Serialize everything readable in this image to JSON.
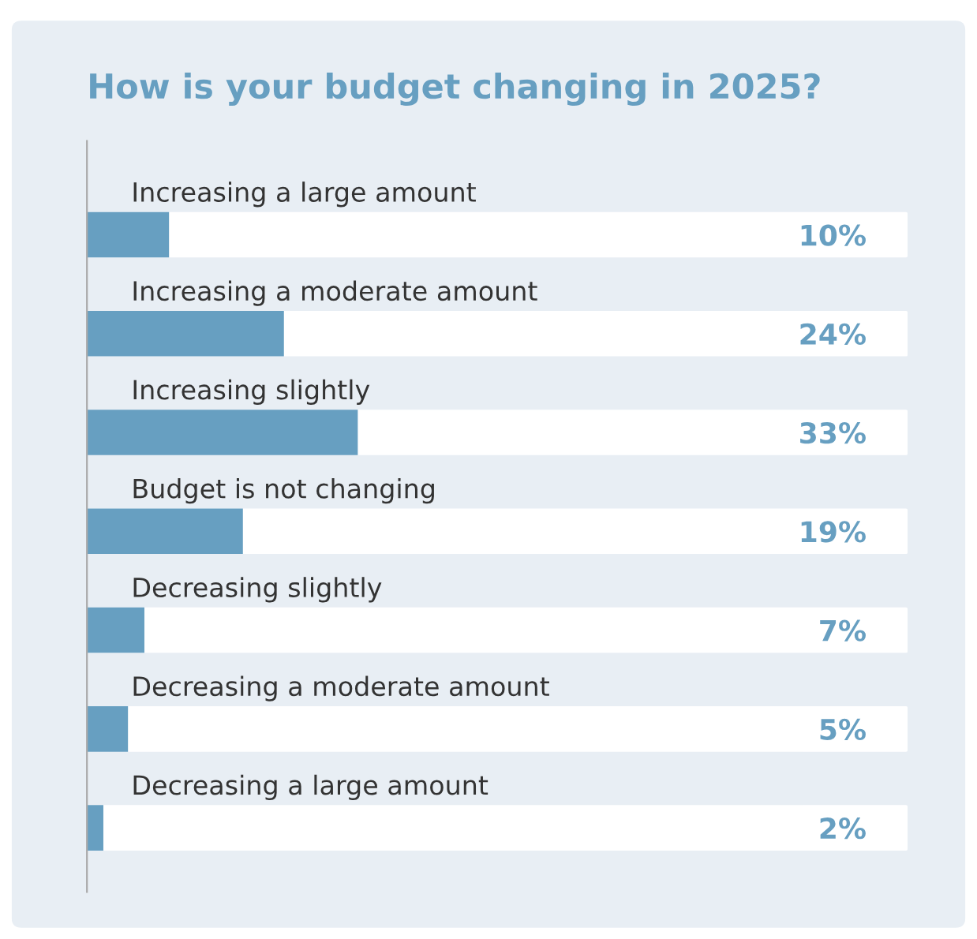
{
  "chart_data": {
    "type": "bar",
    "orientation": "horizontal",
    "title": "How is your budget changing in 2025?",
    "categories": [
      "Increasing a large amount",
      "Increasing a moderate amount",
      "Increasing slightly",
      "Budget is not changing",
      "Decreasing slightly",
      "Decreasing a moderate amount",
      "Decreasing a large amount"
    ],
    "values": [
      10,
      24,
      33,
      19,
      7,
      5,
      2
    ],
    "value_labels": [
      "10%",
      "24%",
      "33%",
      "19%",
      "7%",
      "5%",
      "2%"
    ],
    "color": "#679fc1"
  }
}
